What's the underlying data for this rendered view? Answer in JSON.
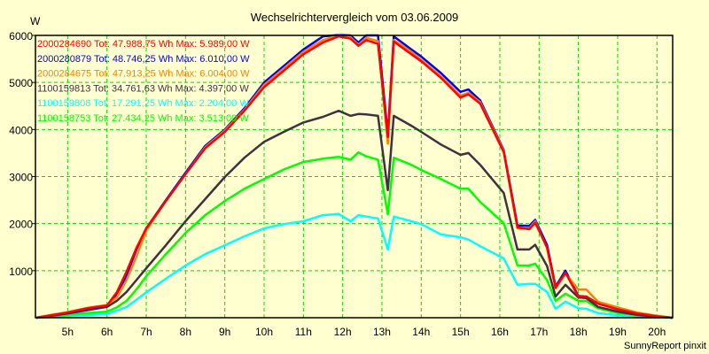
{
  "chart_data": {
    "type": "line",
    "title": "Wechselrichtervergleich vom 03.06.2009",
    "ylabel": "W",
    "xlabel": "",
    "footer": "SunnyReport pinxit",
    "xlim": [
      4.18,
      20.4
    ],
    "ylim": [
      0,
      6000
    ],
    "grid": true,
    "legend_position": "top-left",
    "y_ticks": [
      1000,
      2000,
      3000,
      4000,
      5000,
      6000
    ],
    "y_tick_labels": [
      "1000",
      "2000",
      "3000",
      "4000",
      "5000",
      "6000"
    ],
    "x_ticks": [
      5,
      6,
      7,
      8,
      9,
      10,
      11,
      12,
      13,
      14,
      15,
      16,
      17,
      18,
      19,
      20
    ],
    "x_tick_labels": [
      "5h",
      "6h",
      "7h",
      "8h",
      "9h",
      "10h",
      "11h",
      "12h",
      "13h",
      "14h",
      "15h",
      "16h",
      "17h",
      "18h",
      "19h",
      "20h"
    ],
    "x": [
      4.2,
      4.5,
      5,
      5.5,
      6,
      6.25,
      6.5,
      6.75,
      7,
      7.5,
      8,
      8.5,
      9,
      9.5,
      10,
      10.5,
      11,
      11.5,
      11.9,
      12.2,
      12.4,
      12.6,
      12.9,
      13.15,
      13.3,
      13.75,
      14,
      14.5,
      15,
      15.2,
      15.5,
      16.1,
      16.45,
      16.75,
      16.9,
      17.2,
      17.42,
      17.67,
      18,
      18.2,
      18.5,
      19,
      19.5,
      20,
      20.4
    ],
    "series": [
      {
        "name": "2000284690",
        "legend": "2000284690 Tot: 47.988,75 Wh Max: 5.989,00 W",
        "color": "#ff0000",
        "values": [
          0,
          40,
          110,
          200,
          260,
          540,
          980,
          1480,
          1900,
          2480,
          3050,
          3600,
          3950,
          4400,
          4900,
          5250,
          5600,
          5850,
          5980,
          5930,
          5780,
          5900,
          5820,
          3840,
          5870,
          5600,
          5450,
          5100,
          4680,
          4750,
          4550,
          3520,
          1920,
          1880,
          2020,
          1500,
          640,
          960,
          450,
          450,
          300,
          180,
          90,
          30,
          0
        ]
      },
      {
        "name": "2000280879",
        "legend": "2000280879 Tot: 48.746,25 Wh Max: 6.010,00 W",
        "color": "#0000ff",
        "values": [
          0,
          40,
          100,
          190,
          250,
          480,
          900,
          1450,
          1900,
          2500,
          3080,
          3650,
          4000,
          4450,
          5000,
          5350,
          5700,
          5980,
          6010,
          6000,
          5850,
          6000,
          6000,
          3900,
          5980,
          5700,
          5550,
          5200,
          4800,
          4850,
          4620,
          3560,
          1960,
          1950,
          2080,
          1550,
          660,
          1000,
          460,
          450,
          300,
          180,
          90,
          30,
          0
        ]
      },
      {
        "name": "2000284675",
        "legend": "2000284675 Tot: 47.913,25 Wh Max: 6.004,00 W",
        "color": "#ff8000",
        "values": [
          0,
          50,
          120,
          210,
          270,
          430,
          800,
          1300,
          1850,
          2480,
          3050,
          3620,
          3980,
          4420,
          4950,
          5300,
          5650,
          5900,
          6004,
          5960,
          5800,
          5950,
          5880,
          3700,
          5900,
          5650,
          5480,
          5130,
          4720,
          4780,
          4580,
          3540,
          1900,
          1900,
          2050,
          1480,
          620,
          940,
          600,
          600,
          340,
          220,
          110,
          40,
          0
        ]
      },
      {
        "name": "1100159813",
        "legend": "1100159813 Tot: 34.761,63 Wh Max: 4.397,00 W",
        "color": "#403040",
        "values": [
          0,
          30,
          90,
          160,
          230,
          360,
          550,
          800,
          1050,
          1540,
          2050,
          2520,
          2990,
          3400,
          3740,
          3950,
          4150,
          4270,
          4397,
          4290,
          4330,
          4320,
          4290,
          2710,
          4290,
          4080,
          3950,
          3680,
          3460,
          3500,
          3250,
          2650,
          1450,
          1450,
          1550,
          1100,
          450,
          700,
          430,
          420,
          230,
          130,
          60,
          20,
          0
        ]
      },
      {
        "name": "1100159808",
        "legend": "1100159808 Tot: 17.291,25 Wh Max: 2.204,00 W",
        "color": "#00ffff",
        "values": [
          0,
          10,
          40,
          60,
          80,
          150,
          230,
          380,
          540,
          830,
          1110,
          1350,
          1540,
          1730,
          1900,
          1990,
          2050,
          2180,
          2204,
          2050,
          2180,
          2150,
          2110,
          1450,
          2150,
          2050,
          1990,
          1770,
          1710,
          1660,
          1520,
          1260,
          700,
          720,
          720,
          550,
          190,
          340,
          200,
          190,
          100,
          50,
          10,
          0,
          0
        ]
      },
      {
        "name": "1100158753",
        "legend": "1100158753 Tot: 27.434,25 Wh Max: 3.513,00 W",
        "color": "#00ff00",
        "values": [
          0,
          20,
          60,
          100,
          130,
          220,
          360,
          600,
          880,
          1350,
          1800,
          2180,
          2480,
          2740,
          2950,
          3150,
          3310,
          3380,
          3420,
          3360,
          3513,
          3430,
          3360,
          2200,
          3400,
          3250,
          3140,
          2950,
          2740,
          2740,
          2460,
          2010,
          1110,
          1110,
          1150,
          800,
          360,
          510,
          360,
          360,
          200,
          100,
          50,
          20,
          0
        ]
      }
    ]
  },
  "colors": {
    "background": "#ffffd0",
    "grid": "#00dd00",
    "axis": "#000000"
  }
}
